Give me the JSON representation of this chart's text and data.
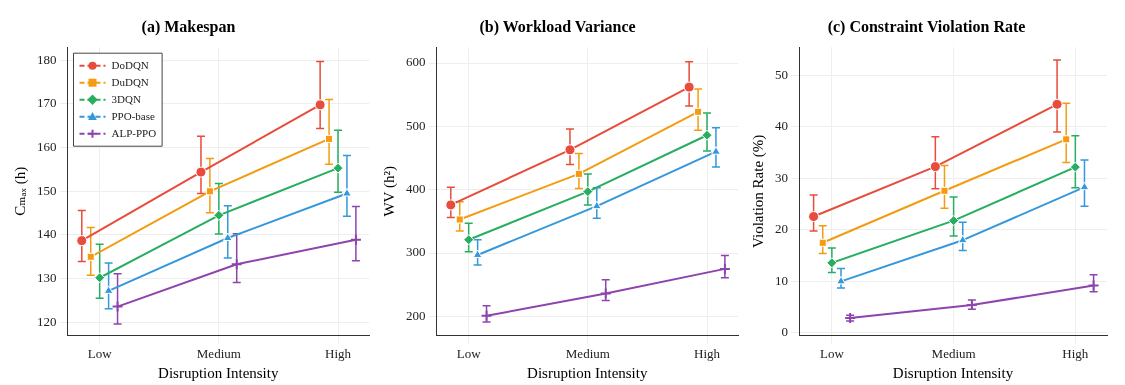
{
  "chart_data": [
    {
      "type": "line",
      "title": "(a) Makespan",
      "xlabel": "Disruption Intensity",
      "ylabel": "Cₘₐₓ (h)",
      "categories": [
        "Low",
        "Medium",
        "High"
      ],
      "ylim": [
        117,
        183
      ],
      "yticks": [
        120,
        130,
        140,
        150,
        160,
        170,
        180
      ],
      "grid": true,
      "legend": "top left",
      "series": [
        {
          "name": "DoDQN",
          "color": "#e74c3c",
          "marker": "circle",
          "values": [
            138.7,
            154.4,
            169.8
          ],
          "errors": [
            [
              133.9,
              145.6
            ],
            [
              149.5,
              162.6
            ],
            [
              164.4,
              179.7
            ]
          ]
        },
        {
          "name": "DuDQN",
          "color": "#f39c12",
          "marker": "square",
          "values": [
            135.0,
            150.0,
            162.0
          ],
          "errors": [
            [
              130.8,
              141.7
            ],
            [
              145.1,
              157.5
            ],
            [
              156.2,
              171.0
            ]
          ]
        },
        {
          "name": "3DQN",
          "color": "#27ae60",
          "marker": "diamond",
          "values": [
            130.2,
            144.5,
            155.3
          ],
          "errors": [
            [
              125.5,
              137.9
            ],
            [
              140.2,
              151.8
            ],
            [
              149.8,
              164.0
            ]
          ]
        },
        {
          "name": "PPO-base",
          "color": "#3498db",
          "marker": "triangle",
          "values": [
            127.2,
            139.3,
            149.5
          ],
          "errors": [
            [
              123.1,
              133.6
            ],
            [
              134.7,
              146.7
            ],
            [
              144.3,
              158.2
            ]
          ]
        },
        {
          "name": "ALP-PPO",
          "color": "#8e44ad",
          "marker": "cross",
          "values": [
            123.6,
            133.3,
            138.9
          ],
          "errors": [
            [
              119.6,
              131.1
            ],
            [
              129.1,
              140.3
            ],
            [
              134.1,
              146.5
            ]
          ]
        }
      ]
    },
    {
      "type": "line",
      "title": "(b) Workload Variance",
      "xlabel": "Disruption Intensity",
      "ylabel": "WV (h²)",
      "categories": [
        "Low",
        "Medium",
        "High"
      ],
      "ylim": [
        170,
        625
      ],
      "yticks": [
        200,
        300,
        400,
        500,
        600
      ],
      "grid": true,
      "series": [
        {
          "color": "#e74c3c",
          "marker": "circle",
          "values": [
            376,
            463,
            562
          ],
          "errors": [
            [
              356,
              404
            ],
            [
              440,
              496
            ],
            [
              532,
              602
            ]
          ]
        },
        {
          "color": "#f39c12",
          "marker": "square",
          "values": [
            353,
            425,
            523
          ],
          "errors": [
            [
              335,
              381
            ],
            [
              402,
              457
            ],
            [
              494,
              559
            ]
          ]
        },
        {
          "color": "#27ae60",
          "marker": "diamond",
          "values": [
            321,
            397,
            486
          ],
          "errors": [
            [
              302,
              347
            ],
            [
              376,
              425
            ],
            [
              461,
              521
            ]
          ]
        },
        {
          "color": "#3498db",
          "marker": "triangle",
          "values": [
            297,
            374,
            460
          ],
          "errors": [
            [
              281,
              321
            ],
            [
              355,
              403
            ],
            [
              436,
              498
            ]
          ]
        },
        {
          "color": "#8e44ad",
          "marker": "cross",
          "values": [
            201,
            236,
            275
          ],
          "errors": [
            [
              191,
              217
            ],
            [
              225,
              258
            ],
            [
              261,
              296
            ]
          ]
        }
      ]
    },
    {
      "type": "line",
      "title": "(c) Constraint Violation Rate",
      "xlabel": "Disruption Intensity",
      "ylabel": "Violation Rate (%)",
      "categories": [
        "Low",
        "Medium",
        "High"
      ],
      "ylim": [
        -0.5,
        55.5
      ],
      "yticks": [
        0,
        10,
        20,
        30,
        40,
        50
      ],
      "grid": true,
      "series": [
        {
          "color": "#e74c3c",
          "marker": "circle",
          "values": [
            22.6,
            32.3,
            44.4
          ],
          "errors": [
            [
              19.8,
              26.8
            ],
            [
              28.0,
              38.1
            ],
            [
              39.0,
              53.0
            ]
          ]
        },
        {
          "color": "#f39c12",
          "marker": "square",
          "values": [
            17.5,
            27.6,
            37.6
          ],
          "errors": [
            [
              15.4,
              20.8
            ],
            [
              24.2,
              32.5
            ],
            [
              33.1,
              44.6
            ]
          ]
        },
        {
          "color": "#27ae60",
          "marker": "diamond",
          "values": [
            13.6,
            21.8,
            32.2
          ],
          "errors": [
            [
              11.7,
              16.5
            ],
            [
              18.8,
              26.4
            ],
            [
              28.2,
              38.3
            ]
          ]
        },
        {
          "color": "#3498db",
          "marker": "triangle",
          "values": [
            10.0,
            18.0,
            28.3
          ],
          "errors": [
            [
              8.7,
              12.5
            ],
            [
              16.0,
              21.5
            ],
            [
              24.6,
              33.6
            ]
          ]
        },
        {
          "color": "#8e44ad",
          "marker": "cross",
          "values": [
            2.9,
            5.4,
            9.2
          ],
          "errors": [
            [
              2.3,
              3.4
            ],
            [
              4.6,
              6.4
            ],
            [
              8.0,
              11.3
            ]
          ]
        }
      ]
    }
  ]
}
